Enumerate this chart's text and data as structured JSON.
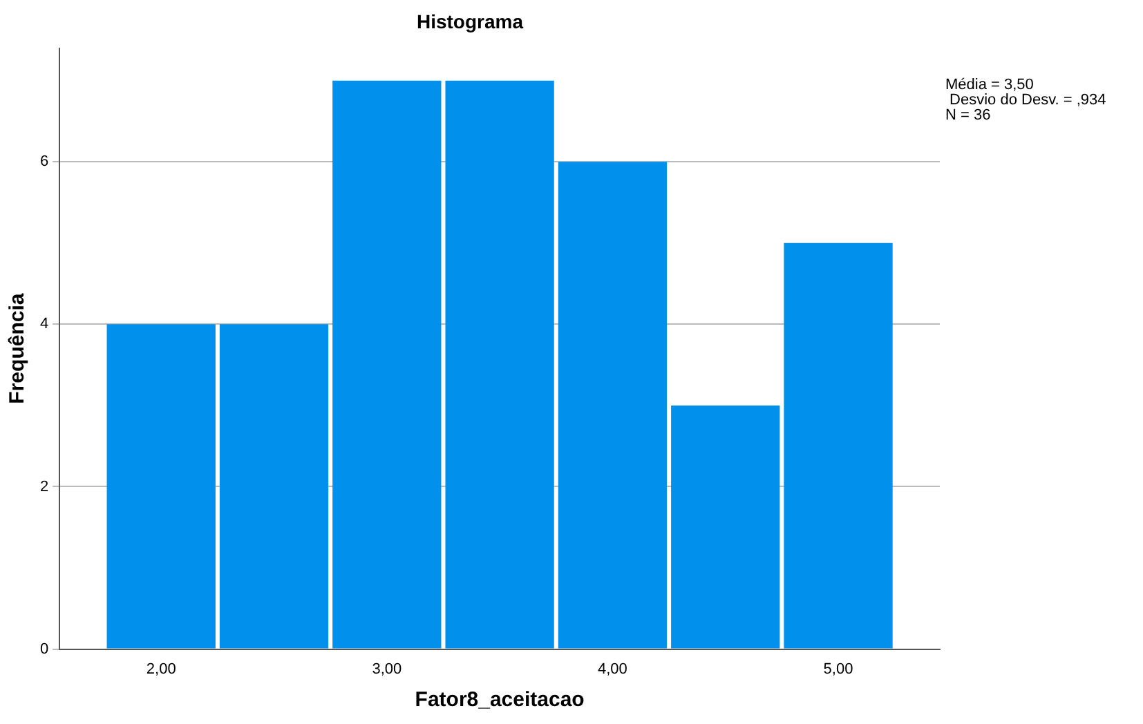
{
  "chart_data": {
    "type": "histogram",
    "title": "Histograma",
    "xlabel": "Fator8_aceitacao",
    "ylabel": "Frequência",
    "bins": [
      1.75,
      2.25,
      2.75,
      3.25,
      3.75,
      4.25,
      4.75,
      5.25
    ],
    "values": [
      4,
      4,
      7,
      7,
      6,
      3,
      5
    ],
    "color": "#0190eb",
    "xlim": [
      1.55,
      5.45
    ],
    "xticks": [
      {
        "value": 2,
        "label": "2,00"
      },
      {
        "value": 3,
        "label": "3,00"
      },
      {
        "value": 4,
        "label": "4,00"
      },
      {
        "value": 5,
        "label": "5,00"
      }
    ],
    "ylim": [
      0,
      7.4
    ],
    "yticks": [
      0,
      2,
      4,
      6
    ],
    "grid": "y",
    "annotations": [
      "Média = 3,50",
      " Desvio do Desv. = ,934",
      "N = 36"
    ]
  }
}
